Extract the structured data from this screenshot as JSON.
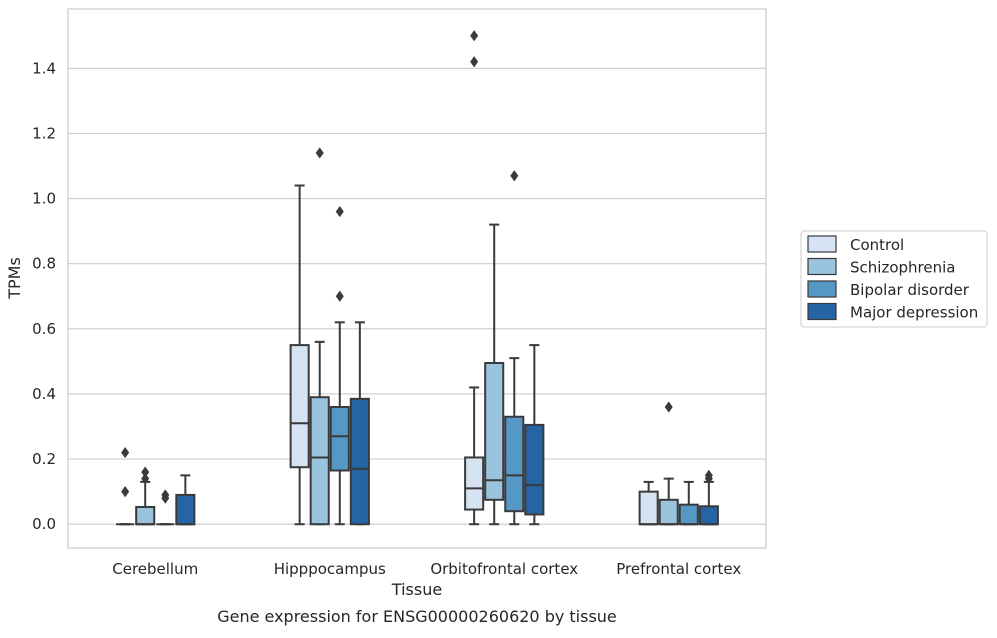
{
  "chart_data": {
    "type": "box",
    "title": "",
    "xlabel": "Tissue",
    "ylabel": "TPMs",
    "caption": "Gene expression for ENSG00000260620 by tissue",
    "categories": [
      "Cerebellum",
      "Hipppocampus",
      "Orbitofrontal cortex",
      "Prefrontal cortex"
    ],
    "ylim": [
      -0.073,
      1.582
    ],
    "yticks": [
      0.0,
      0.2,
      0.4,
      0.6,
      0.8,
      1.0,
      1.2,
      1.4
    ],
    "ytick_labels": [
      "0.0",
      "0.2",
      "0.4",
      "0.6",
      "0.8",
      "1.0",
      "1.2",
      "1.4"
    ],
    "grid": "y",
    "legend_position": "right",
    "series": [
      {
        "name": "Control",
        "color": "#d5e3f2",
        "boxes": [
          {
            "category": "Cerebellum",
            "whisker_low": 0.0,
            "q1": 0.0,
            "median": 0.0,
            "q3": 0.0,
            "whisker_high": 0.0,
            "outliers": [
              0.1,
              0.22
            ]
          },
          {
            "category": "Hipppocampus",
            "whisker_low": 0.0,
            "q1": 0.175,
            "median": 0.31,
            "q3": 0.55,
            "whisker_high": 1.04,
            "outliers": []
          },
          {
            "category": "Orbitofrontal cortex",
            "whisker_low": 0.0,
            "q1": 0.045,
            "median": 0.11,
            "q3": 0.205,
            "whisker_high": 0.42,
            "outliers": [
              1.42,
              1.5
            ]
          },
          {
            "category": "Prefrontal cortex",
            "whisker_low": 0.0,
            "q1": 0.0,
            "median": 0.0,
            "q3": 0.1,
            "whisker_high": 0.13,
            "outliers": []
          }
        ]
      },
      {
        "name": "Schizophrenia",
        "color": "#9ac4dd",
        "boxes": [
          {
            "category": "Cerebellum",
            "whisker_low": 0.0,
            "q1": 0.0,
            "median": 0.0,
            "q3": 0.053,
            "whisker_high": 0.13,
            "outliers": [
              0.14,
              0.16
            ]
          },
          {
            "category": "Hipppocampus",
            "whisker_low": 0.0,
            "q1": 0.0,
            "median": 0.205,
            "q3": 0.39,
            "whisker_high": 0.56,
            "outliers": [
              1.14
            ]
          },
          {
            "category": "Orbitofrontal cortex",
            "whisker_low": 0.0,
            "q1": 0.075,
            "median": 0.135,
            "q3": 0.495,
            "whisker_high": 0.92,
            "outliers": []
          },
          {
            "category": "Prefrontal cortex",
            "whisker_low": 0.0,
            "q1": 0.0,
            "median": 0.0,
            "q3": 0.075,
            "whisker_high": 0.14,
            "outliers": [
              0.36
            ]
          }
        ]
      },
      {
        "name": "Bipolar disorder",
        "color": "#5598c6",
        "boxes": [
          {
            "category": "Cerebellum",
            "whisker_low": 0.0,
            "q1": 0.0,
            "median": 0.0,
            "q3": 0.0,
            "whisker_high": 0.0,
            "outliers": [
              0.08,
              0.09
            ]
          },
          {
            "category": "Hipppocampus",
            "whisker_low": 0.0,
            "q1": 0.165,
            "median": 0.27,
            "q3": 0.36,
            "whisker_high": 0.62,
            "outliers": [
              0.7,
              0.96
            ]
          },
          {
            "category": "Orbitofrontal cortex",
            "whisker_low": 0.0,
            "q1": 0.04,
            "median": 0.15,
            "q3": 0.33,
            "whisker_high": 0.51,
            "outliers": [
              1.07
            ]
          },
          {
            "category": "Prefrontal cortex",
            "whisker_low": 0.0,
            "q1": 0.0,
            "median": 0.0,
            "q3": 0.06,
            "whisker_high": 0.13,
            "outliers": []
          }
        ]
      },
      {
        "name": "Major depression",
        "color": "#2565a6",
        "boxes": [
          {
            "category": "Cerebellum",
            "whisker_low": 0.0,
            "q1": 0.0,
            "median": 0.0,
            "q3": 0.09,
            "whisker_high": 0.15,
            "outliers": []
          },
          {
            "category": "Hipppocampus",
            "whisker_low": 0.0,
            "q1": 0.0,
            "median": 0.17,
            "q3": 0.385,
            "whisker_high": 0.62,
            "outliers": []
          },
          {
            "category": "Orbitofrontal cortex",
            "whisker_low": 0.0,
            "q1": 0.03,
            "median": 0.12,
            "q3": 0.305,
            "whisker_high": 0.55,
            "outliers": []
          },
          {
            "category": "Prefrontal cortex",
            "whisker_low": 0.0,
            "q1": 0.0,
            "median": 0.0,
            "q3": 0.055,
            "whisker_high": 0.13,
            "outliers": [
              0.14,
              0.15
            ]
          }
        ]
      }
    ],
    "colors": {
      "grid": "#cccccc",
      "frame": "#cccccc",
      "line": "#3a3a3a",
      "text": "#262626"
    }
  }
}
